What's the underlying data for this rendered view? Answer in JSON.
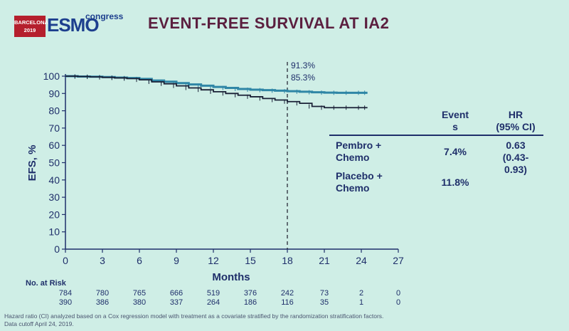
{
  "header": {
    "badge_line1": "BARCELONA",
    "badge_line2": "2019",
    "brand": "ESMO",
    "brand_suffix": "congress",
    "title": "EVENT-FREE SURVIVAL AT IA2"
  },
  "chart_data": {
    "type": "line",
    "title": "EVENT-FREE SURVIVAL AT IA2",
    "xlabel": "Months",
    "ylabel": "EFS, %",
    "xlim": [
      0,
      27
    ],
    "ylim": [
      0,
      100
    ],
    "xticks": [
      0,
      3,
      6,
      9,
      12,
      15,
      18,
      21,
      24,
      27
    ],
    "yticks": [
      0,
      10,
      20,
      30,
      40,
      50,
      60,
      70,
      80,
      90,
      100
    ],
    "annotation_x": 18,
    "annotations": [
      "91.3%",
      "85.3%"
    ],
    "series": [
      {
        "name": "Pembro + Chemo",
        "color": "#2f86a6",
        "points": [
          [
            0,
            100
          ],
          [
            1,
            99.8
          ],
          [
            2,
            99.7
          ],
          [
            3,
            99.5
          ],
          [
            4,
            99.2
          ],
          [
            5,
            98.9
          ],
          [
            6,
            98.4
          ],
          [
            7,
            97.5
          ],
          [
            8,
            96.8
          ],
          [
            9,
            96.0
          ],
          [
            10,
            95.2
          ],
          [
            11,
            94.5
          ],
          [
            12,
            93.8
          ],
          [
            13,
            93.2
          ],
          [
            14,
            92.6
          ],
          [
            15,
            92.2
          ],
          [
            16,
            91.9
          ],
          [
            17,
            91.6
          ],
          [
            18,
            91.3
          ],
          [
            19,
            91.0
          ],
          [
            20,
            90.7
          ],
          [
            21,
            90.5
          ],
          [
            22,
            90.4
          ],
          [
            23,
            90.4
          ],
          [
            24,
            90.4
          ],
          [
            24.5,
            90.4
          ]
        ]
      },
      {
        "name": "Placebo + Chemo",
        "color": "#1a2036",
        "points": [
          [
            0,
            100
          ],
          [
            1,
            99.8
          ],
          [
            2,
            99.6
          ],
          [
            3,
            99.3
          ],
          [
            4,
            99.0
          ],
          [
            5,
            98.6
          ],
          [
            6,
            97.9
          ],
          [
            7,
            96.7
          ],
          [
            8,
            95.6
          ],
          [
            9,
            94.4
          ],
          [
            10,
            93.2
          ],
          [
            11,
            92.1
          ],
          [
            12,
            91.0
          ],
          [
            13,
            90.0
          ],
          [
            14,
            89.0
          ],
          [
            15,
            88.1
          ],
          [
            16,
            87.1
          ],
          [
            17,
            86.2
          ],
          [
            18,
            85.3
          ],
          [
            19,
            84.3
          ],
          [
            20,
            82.5
          ],
          [
            21,
            81.8
          ],
          [
            22,
            81.8
          ],
          [
            23,
            81.8
          ],
          [
            24,
            81.8
          ],
          [
            24.5,
            81.8
          ]
        ]
      }
    ],
    "table": {
      "header_events": "Event\ns",
      "header_hr": "HR\n(95% CI)",
      "rows": [
        {
          "arm": "Pembro +\nChemo",
          "events": "7.4%",
          "hr": "0.63\n(0.43-\n0.93)"
        },
        {
          "arm": "Placebo +\nChemo",
          "events": "11.8%",
          "hr": ""
        }
      ]
    },
    "risk_table": {
      "label": "No. at Risk",
      "rows": [
        [
          "784",
          "780",
          "765",
          "666",
          "519",
          "376",
          "242",
          "73",
          "2",
          "0"
        ],
        [
          "390",
          "386",
          "380",
          "337",
          "264",
          "186",
          "116",
          "35",
          "1",
          "0"
        ]
      ]
    }
  },
  "footnote": {
    "line1": "Hazard ratio (CI) analyzed based on a Cox regression model with treatment as a covariate stratified by the randomization stratification factors.",
    "line2": "Data cutoff April 24, 2019."
  }
}
